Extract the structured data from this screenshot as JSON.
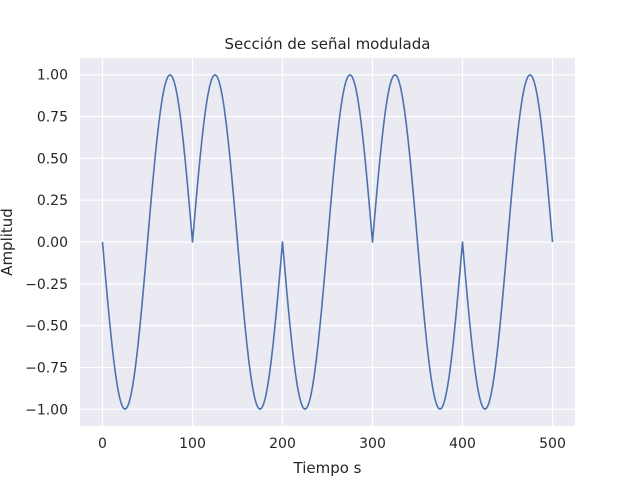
{
  "chart_data": {
    "type": "line",
    "title": "Sección de señal modulada",
    "xlabel": "Tiempo s",
    "ylabel": "Amplitud",
    "xlim": [
      -25,
      525
    ],
    "ylim": [
      -1.1,
      1.1
    ],
    "xticks": [
      0,
      100,
      200,
      300,
      400,
      500
    ],
    "xtick_labels": [
      "0",
      "100",
      "200",
      "300",
      "400",
      "500"
    ],
    "yticks": [
      1.0,
      0.75,
      0.5,
      0.25,
      0.0,
      -0.25,
      -0.5,
      -0.75,
      -1.0
    ],
    "ytick_labels": [
      "1.00",
      "0.75",
      "0.50",
      "0.25",
      "0.00",
      "−0.25",
      "−0.50",
      "−0.75",
      "−1.00"
    ],
    "grid": true,
    "colors": {
      "line": "#4c72b0",
      "plot_background": "#eaeaf2",
      "grid": "#ffffff"
    },
    "series": [
      {
        "x": [
          0,
          25,
          50,
          75,
          100,
          125,
          150,
          175,
          200,
          225,
          250,
          275,
          300,
          325,
          350,
          375,
          400,
          425,
          450,
          475,
          500
        ],
        "values": [
          0,
          -1.0,
          0,
          1.0,
          0,
          1.0,
          0,
          -1.0,
          0,
          -1.0,
          0,
          1.0,
          0,
          1.0,
          0,
          -1.0,
          0,
          -1.0,
          0,
          1.0,
          0
        ]
      }
    ]
  }
}
